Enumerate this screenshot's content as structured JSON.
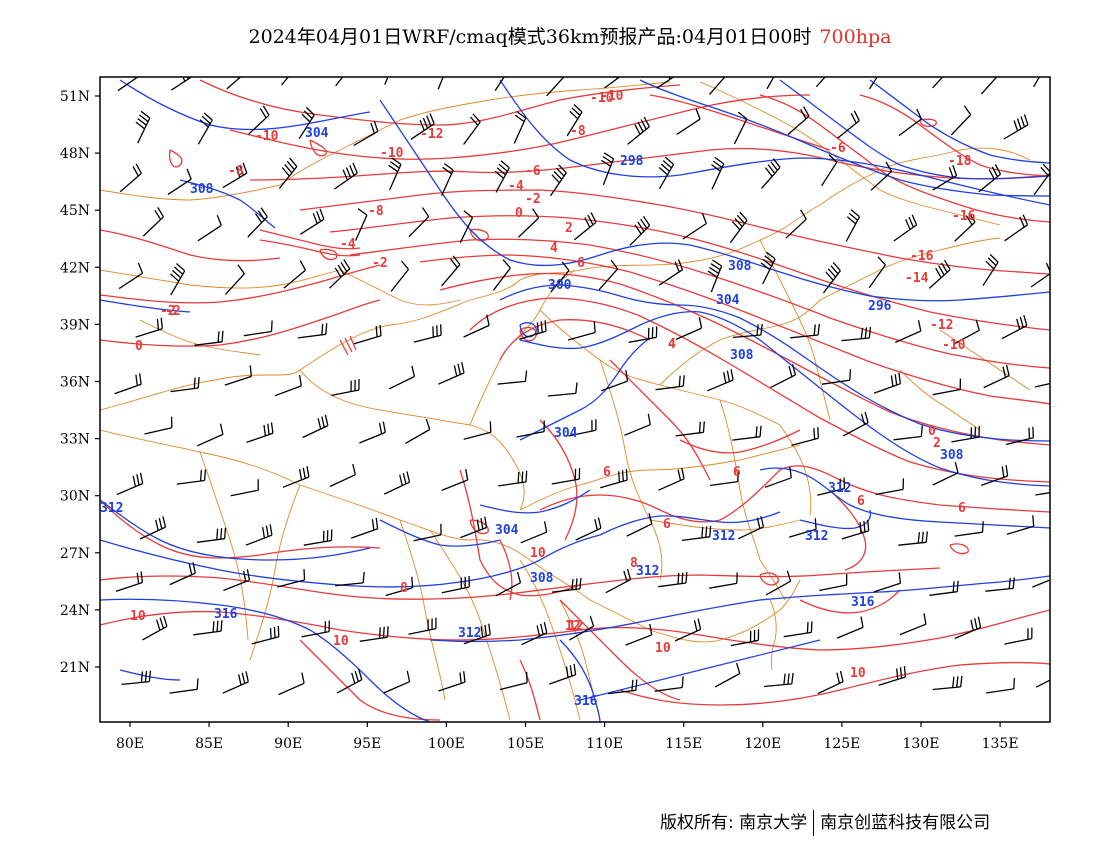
{
  "title": {
    "main": "2024年04月01日WRF/cmaq模式36km预报产品:04月01日00时",
    "level": "700hpa",
    "level_color": "#e0302a"
  },
  "axes": {
    "lat_ticks": [
      "51N",
      "48N",
      "45N",
      "42N",
      "39N",
      "36N",
      "33N",
      "30N",
      "27N",
      "24N",
      "21N"
    ],
    "lon_ticks": [
      "80E",
      "85E",
      "90E",
      "95E",
      "100E",
      "105E",
      "110E",
      "115E",
      "120E",
      "125E",
      "130E",
      "135E"
    ]
  },
  "colors": {
    "geopotential": "#1f3fe0",
    "temperature": "#e83a3a",
    "borders": "#e0882a",
    "wind_barbs": "#000000"
  },
  "contour_labels": {
    "geopotential": [
      "304",
      "308",
      "298",
      "300",
      "308",
      "304",
      "308",
      "296",
      "304",
      "304",
      "308",
      "308",
      "312",
      "312",
      "312",
      "312",
      "316",
      "316",
      "316",
      "312",
      "312"
    ],
    "temperature": [
      "-10",
      "-10",
      "-12",
      "-8",
      "-8",
      "-6",
      "-10",
      "-8",
      "-4",
      "-6",
      "-2",
      "-4",
      "0",
      "-2",
      "2",
      "4",
      "6",
      "-2",
      "0",
      "-16",
      "-16",
      "-14",
      "-18",
      "-12",
      "-10",
      "0",
      "2",
      "4",
      "6",
      "6",
      "6",
      "6",
      "6",
      "8",
      "10",
      "10",
      "12",
      "8",
      "10",
      "10",
      "10",
      "-10",
      "12",
      "-2",
      "4"
    ]
  },
  "footer": {
    "left": "版权所有: 南京大学",
    "right": "南京创蓝科技有限公司"
  }
}
